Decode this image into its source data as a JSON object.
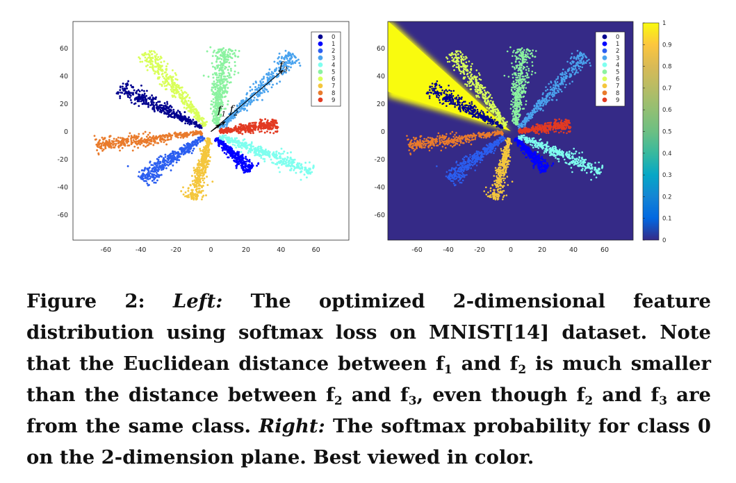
{
  "chart_data": [
    {
      "type": "scatter",
      "panel": "left",
      "xlim": [
        -75,
        75
      ],
      "ylim": [
        -75,
        75
      ],
      "xticks": [
        -60,
        -40,
        -20,
        0,
        20,
        40,
        60
      ],
      "yticks": [
        60,
        40,
        20,
        0,
        -20,
        -40,
        -60
      ],
      "grid": false,
      "legend_position": "top-right",
      "series": [
        {
          "name": "0",
          "color": "#00008f",
          "from": [
            -5,
            3
          ],
          "to": [
            -52,
            32
          ],
          "spread": 3.2,
          "n": 380
        },
        {
          "name": "1",
          "color": "#0000ff",
          "from": [
            3,
            -5
          ],
          "to": [
            23,
            -28
          ],
          "spread": 2.6,
          "n": 320
        },
        {
          "name": "2",
          "color": "#2b5ef0",
          "from": [
            -4,
            -4
          ],
          "to": [
            -40,
            -34
          ],
          "spread": 3.4,
          "n": 380
        },
        {
          "name": "3",
          "color": "#4aa3ee",
          "from": [
            5,
            2
          ],
          "to": [
            48,
            55
          ],
          "spread": 3.4,
          "n": 400
        },
        {
          "name": "4",
          "color": "#7fffef",
          "from": [
            5,
            -3
          ],
          "to": [
            58,
            -29
          ],
          "spread": 3.4,
          "n": 400
        },
        {
          "name": "5",
          "color": "#8bf2a0",
          "from": [
            3,
            5
          ],
          "to": [
            8,
            60
          ],
          "spread": 4.2,
          "n": 420
        },
        {
          "name": "6",
          "color": "#d9ff59",
          "from": [
            -3,
            4
          ],
          "to": [
            -37,
            57
          ],
          "spread": 3.4,
          "n": 380
        },
        {
          "name": "7",
          "color": "#f4c63d",
          "from": [
            -1,
            -5
          ],
          "to": [
            -10,
            -49
          ],
          "spread": 3.0,
          "n": 360
        },
        {
          "name": "8",
          "color": "#e97b2c",
          "from": [
            -5,
            -1
          ],
          "to": [
            -66,
            -10
          ],
          "spread": 3.2,
          "n": 400
        },
        {
          "name": "9",
          "color": "#e23a22",
          "from": [
            5,
            0
          ],
          "to": [
            38,
            5
          ],
          "spread": 2.6,
          "n": 360
        }
      ],
      "vectors": [
        {
          "label": "f",
          "sub": "1",
          "to": [
            5,
            5
          ]
        },
        {
          "label": "f",
          "sub": "2",
          "to": [
            8,
            7
          ]
        },
        {
          "label": "f",
          "sub": "3",
          "to": [
            41,
            44
          ]
        }
      ]
    },
    {
      "type": "heatmap",
      "panel": "right",
      "xlim": [
        -78,
        78
      ],
      "ylim": [
        -78,
        78
      ],
      "xticks": [
        -60,
        -40,
        -20,
        0,
        20,
        40,
        60
      ],
      "yticks": [
        60,
        40,
        20,
        0,
        -20,
        -40,
        -60
      ],
      "legend_position": "top-right",
      "colorbar": {
        "range": [
          0,
          1
        ],
        "ticks": [
          "0",
          "0.1",
          "0.2",
          "0.3",
          "0.4",
          "0.5",
          "0.6",
          "0.7",
          "0.8",
          "0.9",
          "1"
        ]
      },
      "background_value": 0,
      "high_region": "class 0 wedge, upper-left",
      "overlay": "same scatter as left panel"
    }
  ],
  "caption": {
    "fig_label": "Figure 2:",
    "left_word": "Left:",
    "part1": "The optimized 2-dimensional feature distribution using softmax loss on MNIST[14] dataset. Note that the Euclidean distance between f",
    "s1": "1",
    "part2": " and f",
    "s2": "2",
    "part3": " is much smaller than the distance between f",
    "s3": "2",
    "part4": " and f",
    "s4": "3",
    "part5": ", even though f",
    "s5": "2",
    "part6": " and f",
    "s6": "3",
    "part7": " are from the same class. ",
    "right_word": "Right:",
    "part8": "The softmax probability for class 0 on the 2-dimension plane. Best viewed in color."
  }
}
